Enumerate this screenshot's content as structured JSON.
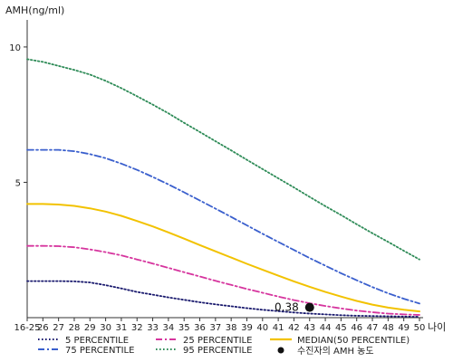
{
  "chart_data": {
    "type": "line",
    "ylabel": "AMH(ng/ml)",
    "xlabel": "나이",
    "ylim": [
      0,
      11
    ],
    "y_ticks": [
      5,
      10
    ],
    "categories": [
      "16-25",
      "26",
      "27",
      "28",
      "29",
      "30",
      "31",
      "32",
      "33",
      "34",
      "35",
      "36",
      "37",
      "38",
      "39",
      "40",
      "41",
      "42",
      "43",
      "44",
      "45",
      "46",
      "47",
      "48",
      "49",
      "50"
    ],
    "series": [
      {
        "name": "5 PERCENTILE",
        "color": "#1a1a6e",
        "style": "dotted",
        "values": [
          1.35,
          1.35,
          1.35,
          1.34,
          1.3,
          1.2,
          1.08,
          0.95,
          0.85,
          0.75,
          0.66,
          0.57,
          0.49,
          0.42,
          0.35,
          0.29,
          0.24,
          0.19,
          0.15,
          0.12,
          0.09,
          0.07,
          0.06,
          0.05,
          0.04,
          0.03
        ]
      },
      {
        "name": "25 PERCENTILE",
        "color": "#d6359e",
        "style": "dashdot",
        "values": [
          2.65,
          2.65,
          2.64,
          2.6,
          2.52,
          2.42,
          2.3,
          2.15,
          2.0,
          1.84,
          1.68,
          1.52,
          1.36,
          1.21,
          1.06,
          0.92,
          0.78,
          0.65,
          0.53,
          0.43,
          0.34,
          0.26,
          0.2,
          0.15,
          0.12,
          0.1
        ]
      },
      {
        "name": "MEDIAN(50 PERCENTILE)",
        "color": "#f2c200",
        "style": "solid",
        "values": [
          4.2,
          4.2,
          4.18,
          4.13,
          4.04,
          3.92,
          3.76,
          3.57,
          3.37,
          3.15,
          2.92,
          2.68,
          2.45,
          2.22,
          1.99,
          1.77,
          1.55,
          1.34,
          1.14,
          0.95,
          0.78,
          0.62,
          0.48,
          0.37,
          0.29,
          0.23
        ]
      },
      {
        "name": "75 PERCENTILE",
        "color": "#3a5fcd",
        "style": "dashdot",
        "values": [
          6.2,
          6.2,
          6.2,
          6.15,
          6.04,
          5.89,
          5.69,
          5.46,
          5.2,
          4.92,
          4.63,
          4.33,
          4.03,
          3.72,
          3.41,
          3.1,
          2.8,
          2.5,
          2.2,
          1.92,
          1.64,
          1.38,
          1.13,
          0.9,
          0.7,
          0.52
        ]
      },
      {
        "name": "95 PERCENTILE",
        "color": "#2e8b57",
        "style": "dotted",
        "values": [
          9.55,
          9.45,
          9.3,
          9.15,
          8.98,
          8.75,
          8.48,
          8.18,
          7.87,
          7.55,
          7.2,
          6.86,
          6.52,
          6.18,
          5.83,
          5.49,
          5.15,
          4.81,
          4.46,
          4.12,
          3.79,
          3.45,
          3.12,
          2.8,
          2.47,
          2.15
        ]
      }
    ],
    "point": {
      "name": "수진자의 AMH 농도",
      "category": "43",
      "value": 0.38,
      "label": "0.38",
      "color": "#111111"
    },
    "legend_position": "bottom",
    "grid": false
  }
}
